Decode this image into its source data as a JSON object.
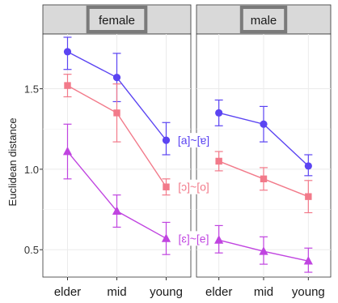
{
  "chart_data": {
    "type": "line",
    "ylabel": "Euclidean distance",
    "xlabel": "",
    "categories": [
      "elder",
      "mid",
      "young"
    ],
    "ylim": [
      0.33,
      1.84
    ],
    "yticks": [
      0.5,
      1.0,
      1.5
    ],
    "ytick_labels": [
      "0.5",
      "1.0",
      "1.5"
    ],
    "grid": true,
    "panels": [
      {
        "name": "female",
        "series": [
          {
            "name": "[a]~[ɐ]",
            "color": "#5b44f2",
            "marker": "circle",
            "values": [
              1.73,
              1.57,
              1.18
            ],
            "lower": [
              1.62,
              1.42,
              1.09
            ],
            "upper": [
              1.82,
              1.72,
              1.29
            ]
          },
          {
            "name": "[ɔ]~[o]",
            "color": "#f27a8a",
            "marker": "square",
            "values": [
              1.52,
              1.35,
              0.89
            ],
            "lower": [
              1.45,
              1.17,
              0.84
            ],
            "upper": [
              1.59,
              1.53,
              0.94
            ]
          },
          {
            "name": "[ɛ]~[e]",
            "color": "#c044e0",
            "marker": "triangle",
            "values": [
              1.11,
              0.74,
              0.57
            ],
            "lower": [
              0.94,
              0.64,
              0.47
            ],
            "upper": [
              1.28,
              0.84,
              0.67
            ]
          }
        ]
      },
      {
        "name": "male",
        "series": [
          {
            "name": "[a]~[ɐ]",
            "color": "#5b44f2",
            "marker": "circle",
            "values": [
              1.35,
              1.28,
              1.02
            ],
            "lower": [
              1.27,
              1.17,
              0.96
            ],
            "upper": [
              1.43,
              1.39,
              1.09
            ]
          },
          {
            "name": "[ɔ]~[o]",
            "color": "#f27a8a",
            "marker": "square",
            "values": [
              1.05,
              0.94,
              0.83
            ],
            "lower": [
              0.99,
              0.87,
              0.73
            ],
            "upper": [
              1.11,
              1.01,
              0.93
            ]
          },
          {
            "name": "[ɛ]~[e]",
            "color": "#c044e0",
            "marker": "triangle",
            "values": [
              0.56,
              0.49,
              0.43
            ],
            "lower": [
              0.48,
              0.41,
              0.36
            ],
            "upper": [
              0.65,
              0.58,
              0.51
            ]
          }
        ]
      }
    ]
  }
}
